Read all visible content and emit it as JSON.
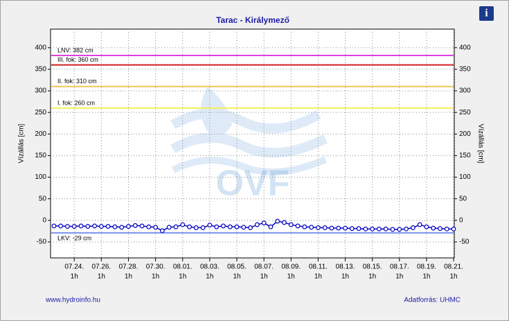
{
  "chart_data": {
    "type": "line",
    "title": "Tarac - Királymező",
    "y_label": "Vízállás [cm]",
    "footer_left": "www.hydroinfo.hu",
    "footer_right": "Adatforrás: UHMC",
    "watermark": "OVF",
    "xlim": [
      -1.75,
      28.05
    ],
    "xticks": [
      {
        "value": 0,
        "label": "07.24."
      },
      {
        "value": 2,
        "label": "07.26."
      },
      {
        "value": 4,
        "label": "07.28."
      },
      {
        "value": 6,
        "label": "07.30."
      },
      {
        "value": 8,
        "label": "08.01."
      },
      {
        "value": 10,
        "label": "08.03."
      },
      {
        "value": 12,
        "label": "08.05."
      },
      {
        "value": 14,
        "label": "08.07."
      },
      {
        "value": 16,
        "label": "08.09."
      },
      {
        "value": 18,
        "label": "08.11."
      },
      {
        "value": 20,
        "label": "08.13."
      },
      {
        "value": 22,
        "label": "08.15."
      },
      {
        "value": 24,
        "label": "08.17."
      },
      {
        "value": 26,
        "label": "08.19."
      },
      {
        "value": 28,
        "label": "08.21."
      }
    ],
    "xtick_hour": "1h",
    "ylim": [
      -87,
      443
    ],
    "yticks": [
      -50,
      0,
      50,
      100,
      150,
      200,
      250,
      300,
      350,
      400
    ],
    "grid": true,
    "thresholds": [
      {
        "label": "LNV: 382 cm",
        "value": 382,
        "color": "#e040e0"
      },
      {
        "label": "III. fok: 360 cm",
        "value": 360,
        "color": "#d02020"
      },
      {
        "label": "II. fok: 310 cm",
        "value": 310,
        "color": "#f0c850"
      },
      {
        "label": "I. fok: 260 cm",
        "value": 260,
        "color": "#f0f060"
      },
      {
        "label": "LKV: -29 cm",
        "value": -29,
        "color": "#7890f0"
      }
    ],
    "x": [
      -1.5,
      -1,
      -0.5,
      0,
      0.5,
      1,
      1.5,
      2,
      2.5,
      3,
      3.5,
      4,
      4.5,
      5,
      5.5,
      6,
      6.5,
      7,
      7.5,
      8,
      8.5,
      9,
      9.5,
      10,
      10.5,
      11,
      11.5,
      12,
      12.5,
      13,
      13.5,
      14,
      14.5,
      15,
      15.5,
      16,
      16.5,
      17,
      17.5,
      18,
      18.5,
      19,
      19.5,
      20,
      20.5,
      21,
      21.5,
      22,
      22.5,
      23,
      23.5,
      24,
      24.5,
      25,
      25.5,
      26,
      26.5,
      27,
      27.5,
      28
    ],
    "series": [
      {
        "color": "#0000c0",
        "values": [
          -13,
          -13,
          -14,
          -14,
          -13,
          -14,
          -13,
          -14,
          -14,
          -15,
          -16,
          -14,
          -12,
          -13,
          -15,
          -16,
          -24,
          -16,
          -15,
          -10,
          -15,
          -17,
          -17,
          -11,
          -15,
          -13,
          -15,
          -15,
          -16,
          -17,
          -10,
          -6,
          -15,
          -2,
          -5,
          -10,
          -13,
          -15,
          -16,
          -17,
          -17,
          -18,
          -18,
          -18,
          -19,
          -19,
          -20,
          -20,
          -20,
          -20,
          -21,
          -21,
          -20,
          -17,
          -10,
          -15,
          -18,
          -19,
          -20,
          -20
        ]
      }
    ]
  }
}
